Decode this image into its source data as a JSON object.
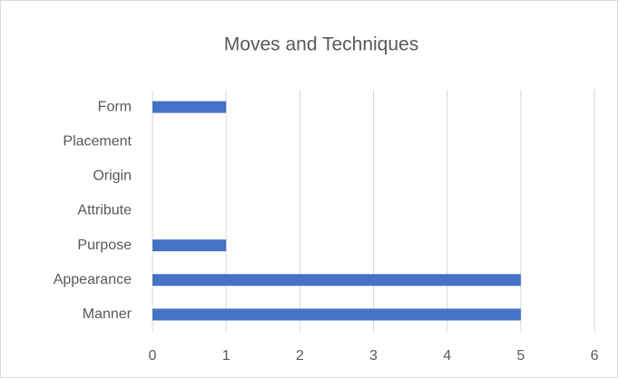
{
  "chart_data": {
    "type": "barh",
    "title": "Moves and Techniques",
    "categories": [
      "Manner",
      "Appearance",
      "Purpose",
      "Attribute",
      "Origin ",
      "Placement",
      "Form"
    ],
    "values": [
      5,
      5,
      1,
      0,
      0,
      0,
      1
    ],
    "color": "#4472c4",
    "xlim": [
      0,
      6
    ],
    "xticks": [
      0,
      1,
      2,
      3,
      4,
      5,
      6
    ],
    "grid": true
  }
}
